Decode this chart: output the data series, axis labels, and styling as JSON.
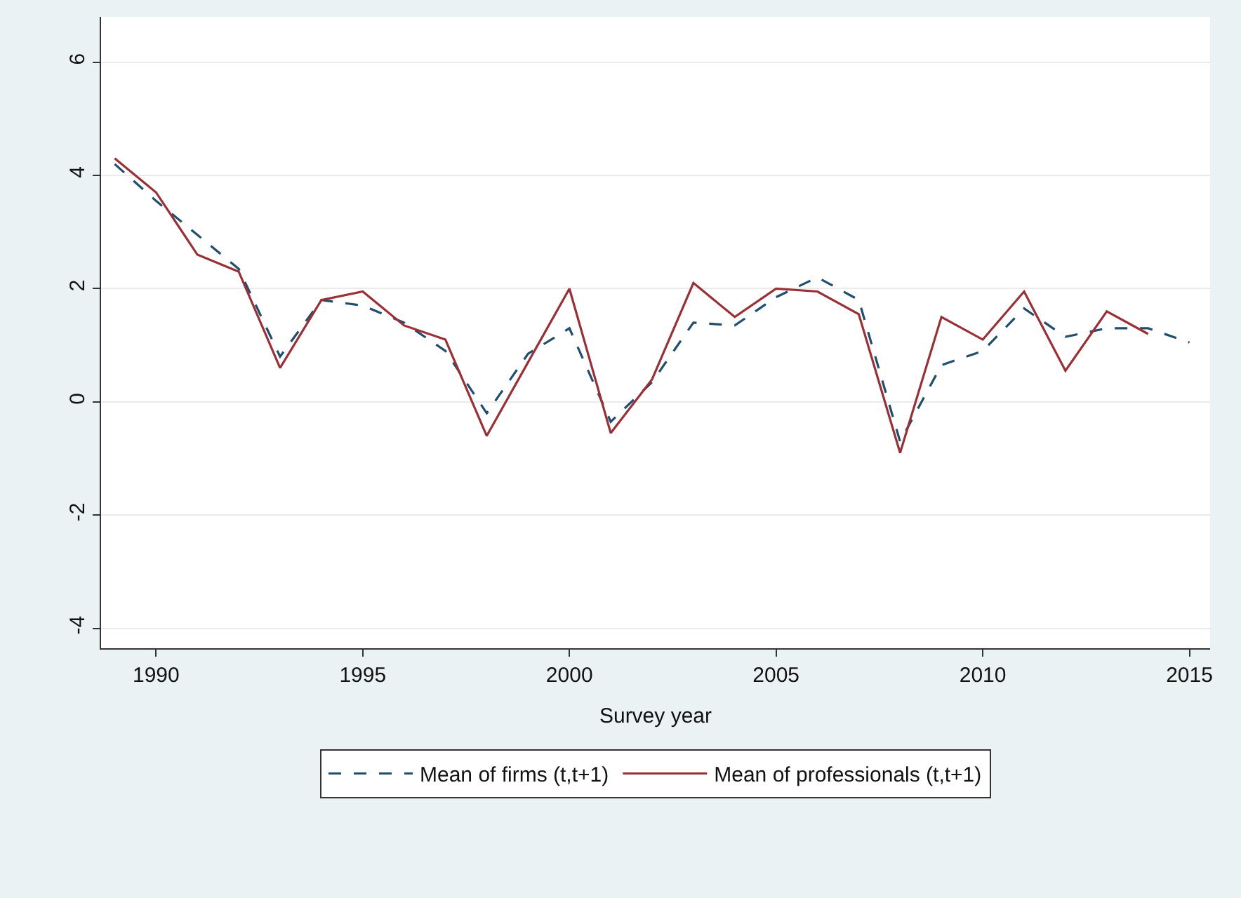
{
  "chart_data": {
    "type": "line",
    "xlabel": "Survey year",
    "x": [
      1989,
      1990,
      1991,
      1992,
      1993,
      1994,
      1995,
      1996,
      1997,
      1998,
      1999,
      2000,
      2001,
      2002,
      2003,
      2004,
      2005,
      2006,
      2007,
      2008,
      2009,
      2010,
      2011,
      2012,
      2013,
      2014,
      2015
    ],
    "series": [
      {
        "name": "Mean of firms (t,t+1)",
        "color": "#1f4e6e",
        "line_style": "dashed",
        "values": [
          4.2,
          3.55,
          2.95,
          2.35,
          0.8,
          1.8,
          1.7,
          1.4,
          0.9,
          -0.2,
          0.85,
          1.3,
          -0.35,
          0.35,
          1.4,
          1.35,
          1.85,
          2.2,
          1.8,
          -0.7,
          0.65,
          0.9,
          1.65,
          1.15,
          1.3,
          1.3,
          1.05
        ]
      },
      {
        "name": "Mean of professionals (t,t+1)",
        "color": "#9b2f35",
        "line_style": "solid",
        "values": [
          4.3,
          3.7,
          2.6,
          2.3,
          0.6,
          1.8,
          1.95,
          1.35,
          1.1,
          -0.6,
          0.7,
          2.0,
          -0.55,
          0.4,
          2.1,
          1.5,
          2.0,
          1.95,
          1.55,
          -0.9,
          1.5,
          1.1,
          1.95,
          0.55,
          1.6,
          1.2,
          null
        ]
      }
    ],
    "xlim": [
      1988.67,
      2015.5
    ],
    "xticks": [
      1990,
      1995,
      2000,
      2005,
      2010,
      2015
    ],
    "ylim": [
      -4.35,
      6.8
    ],
    "yticks": [
      -4,
      -2,
      0,
      2,
      4,
      6
    ],
    "grid": "y",
    "legend": "bottom",
    "marker": "none"
  }
}
